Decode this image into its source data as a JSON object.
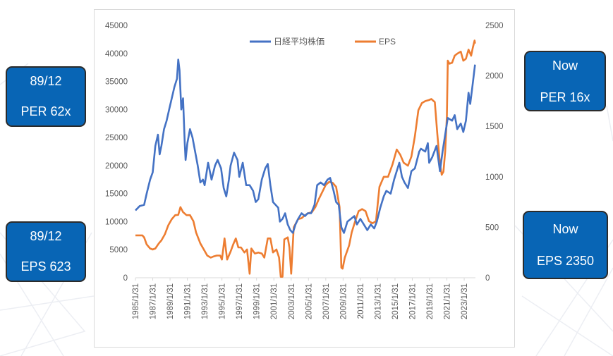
{
  "callouts": {
    "peak_per": {
      "line1": "89/12",
      "line2": "PER 62x"
    },
    "peak_eps": {
      "line1": "89/12",
      "line2": "EPS 623"
    },
    "now_per": {
      "line1": "Now",
      "line2": "PER 16x"
    },
    "now_eps": {
      "line1": "Now",
      "line2": "EPS 2350"
    }
  },
  "colors": {
    "callout_fill": "#0865b5",
    "nikkei": "#4472c4",
    "eps": "#ed7d31"
  },
  "chart_data": {
    "type": "line",
    "title": "",
    "xlabel": "",
    "ylabel": "",
    "grid": false,
    "legend_placement": "top",
    "x_ticks": [
      "1985/1/31",
      "1987/1/31",
      "1989/1/31",
      "1991/1/31",
      "1993/1/31",
      "1995/1/31",
      "1997/1/31",
      "1999/1/31",
      "2001/1/31",
      "2003/1/31",
      "2005/1/31",
      "2007/1/31",
      "2009/1/31",
      "2011/1/31",
      "2013/1/31",
      "2015/1/31",
      "2017/1/31",
      "2019/1/31",
      "2021/1/31",
      "2023/1/31"
    ],
    "x_range": [
      1985.0,
      2024.3
    ],
    "y_left": {
      "min": 0,
      "max": 45000,
      "ticks": [
        "0",
        "5000",
        "10000",
        "15000",
        "20000",
        "25000",
        "30000",
        "35000",
        "40000",
        "45000"
      ]
    },
    "y_right": {
      "min": 0,
      "max": 2500,
      "ticks": [
        "0",
        "500",
        "1000",
        "1500",
        "2000",
        "2500"
      ]
    },
    "series": [
      {
        "name": "日経平均株価",
        "axis": "left",
        "points": [
          [
            1985.0,
            12000
          ],
          [
            1985.5,
            12800
          ],
          [
            1986.0,
            13000
          ],
          [
            1986.3,
            15000
          ],
          [
            1986.7,
            17500
          ],
          [
            1987.0,
            18800
          ],
          [
            1987.3,
            23500
          ],
          [
            1987.6,
            25500
          ],
          [
            1987.8,
            22000
          ],
          [
            1988.0,
            23500
          ],
          [
            1988.3,
            26500
          ],
          [
            1988.6,
            28000
          ],
          [
            1988.9,
            30000
          ],
          [
            1989.2,
            32000
          ],
          [
            1989.5,
            34000
          ],
          [
            1989.8,
            35500
          ],
          [
            1989.95,
            38900
          ],
          [
            1990.1,
            37000
          ],
          [
            1990.3,
            30000
          ],
          [
            1990.5,
            32000
          ],
          [
            1990.7,
            24000
          ],
          [
            1990.8,
            21000
          ],
          [
            1991.0,
            24000
          ],
          [
            1991.3,
            26500
          ],
          [
            1991.6,
            25000
          ],
          [
            1991.9,
            22500
          ],
          [
            1992.2,
            20000
          ],
          [
            1992.5,
            17000
          ],
          [
            1992.8,
            17500
          ],
          [
            1993.0,
            16500
          ],
          [
            1993.4,
            20500
          ],
          [
            1993.8,
            17500
          ],
          [
            1994.2,
            20000
          ],
          [
            1994.5,
            21000
          ],
          [
            1994.9,
            19500
          ],
          [
            1995.2,
            16000
          ],
          [
            1995.5,
            14500
          ],
          [
            1995.8,
            17500
          ],
          [
            1996.0,
            20000
          ],
          [
            1996.4,
            22300
          ],
          [
            1996.8,
            21000
          ],
          [
            1997.0,
            18000
          ],
          [
            1997.4,
            20500
          ],
          [
            1997.8,
            16500
          ],
          [
            1998.2,
            16500
          ],
          [
            1998.6,
            15500
          ],
          [
            1998.9,
            13500
          ],
          [
            1999.2,
            14000
          ],
          [
            1999.6,
            17500
          ],
          [
            2000.0,
            19500
          ],
          [
            2000.3,
            20300
          ],
          [
            2000.6,
            16500
          ],
          [
            2000.9,
            13500
          ],
          [
            2001.2,
            13000
          ],
          [
            2001.5,
            12500
          ],
          [
            2001.7,
            10000
          ],
          [
            2002.0,
            10500
          ],
          [
            2002.3,
            11500
          ],
          [
            2002.6,
            9500
          ],
          [
            2002.9,
            8500
          ],
          [
            2003.2,
            8000
          ],
          [
            2003.5,
            9500
          ],
          [
            2003.8,
            10500
          ],
          [
            2004.2,
            11500
          ],
          [
            2004.6,
            11000
          ],
          [
            2004.9,
            11500
          ],
          [
            2005.3,
            11500
          ],
          [
            2005.7,
            13000
          ],
          [
            2006.0,
            16500
          ],
          [
            2006.4,
            17000
          ],
          [
            2006.8,
            16500
          ],
          [
            2007.2,
            17500
          ],
          [
            2007.5,
            17800
          ],
          [
            2007.9,
            15500
          ],
          [
            2008.2,
            13500
          ],
          [
            2008.5,
            13000
          ],
          [
            2008.8,
            9000
          ],
          [
            2009.1,
            8000
          ],
          [
            2009.5,
            10000
          ],
          [
            2009.9,
            10500
          ],
          [
            2010.3,
            11000
          ],
          [
            2010.6,
            9500
          ],
          [
            2011.0,
            10500
          ],
          [
            2011.4,
            9500
          ],
          [
            2011.8,
            8500
          ],
          [
            2012.2,
            9500
          ],
          [
            2012.6,
            8800
          ],
          [
            2012.9,
            10000
          ],
          [
            2013.3,
            12500
          ],
          [
            2013.7,
            14500
          ],
          [
            2014.0,
            15500
          ],
          [
            2014.5,
            15000
          ],
          [
            2014.9,
            17500
          ],
          [
            2015.3,
            19500
          ],
          [
            2015.5,
            20500
          ],
          [
            2015.8,
            18000
          ],
          [
            2016.1,
            17000
          ],
          [
            2016.5,
            16000
          ],
          [
            2016.9,
            19000
          ],
          [
            2017.3,
            19500
          ],
          [
            2017.8,
            22500
          ],
          [
            2018.0,
            23000
          ],
          [
            2018.5,
            22500
          ],
          [
            2018.8,
            24000
          ],
          [
            2018.95,
            20500
          ],
          [
            2019.3,
            21500
          ],
          [
            2019.8,
            23500
          ],
          [
            2020.2,
            19000
          ],
          [
            2020.5,
            22500
          ],
          [
            2020.9,
            26500
          ],
          [
            2021.1,
            28500
          ],
          [
            2021.6,
            28000
          ],
          [
            2021.9,
            29000
          ],
          [
            2022.2,
            26500
          ],
          [
            2022.6,
            27500
          ],
          [
            2022.9,
            26000
          ],
          [
            2023.2,
            28000
          ],
          [
            2023.5,
            33000
          ],
          [
            2023.7,
            31000
          ],
          [
            2023.9,
            33500
          ],
          [
            2024.1,
            36000
          ],
          [
            2024.25,
            38000
          ]
        ]
      },
      {
        "name": "EPS",
        "axis": "right",
        "points": [
          [
            1985.0,
            420
          ],
          [
            1985.5,
            420
          ],
          [
            1985.8,
            420
          ],
          [
            1986.0,
            400
          ],
          [
            1986.3,
            330
          ],
          [
            1986.7,
            290
          ],
          [
            1987.0,
            280
          ],
          [
            1987.3,
            290
          ],
          [
            1987.7,
            340
          ],
          [
            1988.0,
            370
          ],
          [
            1988.4,
            430
          ],
          [
            1988.8,
            520
          ],
          [
            1989.2,
            580
          ],
          [
            1989.6,
            620
          ],
          [
            1989.95,
            623
          ],
          [
            1990.2,
            700
          ],
          [
            1990.5,
            650
          ],
          [
            1990.9,
            620
          ],
          [
            1991.3,
            620
          ],
          [
            1991.7,
            560
          ],
          [
            1992.0,
            450
          ],
          [
            1992.5,
            340
          ],
          [
            1992.9,
            280
          ],
          [
            1993.3,
            220
          ],
          [
            1993.7,
            200
          ],
          [
            1994.0,
            210
          ],
          [
            1994.4,
            220
          ],
          [
            1994.8,
            220
          ],
          [
            1995.0,
            180
          ],
          [
            1995.3,
            390
          ],
          [
            1995.6,
            180
          ],
          [
            1996.0,
            260
          ],
          [
            1996.3,
            330
          ],
          [
            1996.6,
            390
          ],
          [
            1996.9,
            300
          ],
          [
            1997.2,
            300
          ],
          [
            1997.6,
            250
          ],
          [
            1997.9,
            280
          ],
          [
            1998.2,
            40
          ],
          [
            1998.4,
            290
          ],
          [
            1998.8,
            240
          ],
          [
            1999.2,
            250
          ],
          [
            1999.6,
            240
          ],
          [
            1999.9,
            200
          ],
          [
            2000.3,
            390
          ],
          [
            2000.6,
            390
          ],
          [
            2000.9,
            250
          ],
          [
            2001.3,
            280
          ],
          [
            2001.6,
            200
          ],
          [
            2001.8,
            10
          ],
          [
            2002.0,
            10
          ],
          [
            2002.2,
            380
          ],
          [
            2002.6,
            400
          ],
          [
            2002.8,
            300
          ],
          [
            2003.0,
            40
          ],
          [
            2003.3,
            500
          ],
          [
            2003.8,
            580
          ],
          [
            2004.2,
            590
          ],
          [
            2004.6,
            620
          ],
          [
            2005.0,
            640
          ],
          [
            2005.4,
            650
          ],
          [
            2005.8,
            700
          ],
          [
            2006.2,
            780
          ],
          [
            2006.6,
            850
          ],
          [
            2007.0,
            920
          ],
          [
            2007.4,
            950
          ],
          [
            2007.8,
            940
          ],
          [
            2008.2,
            900
          ],
          [
            2008.6,
            700
          ],
          [
            2008.8,
            100
          ],
          [
            2008.95,
            90
          ],
          [
            2009.2,
            200
          ],
          [
            2009.7,
            320
          ],
          [
            2010.0,
            450
          ],
          [
            2010.4,
            560
          ],
          [
            2010.8,
            660
          ],
          [
            2011.2,
            680
          ],
          [
            2011.6,
            660
          ],
          [
            2012.0,
            560
          ],
          [
            2012.4,
            540
          ],
          [
            2012.8,
            560
          ],
          [
            2013.2,
            900
          ],
          [
            2013.7,
            1000
          ],
          [
            2014.2,
            1000
          ],
          [
            2014.7,
            1120
          ],
          [
            2015.2,
            1270
          ],
          [
            2015.6,
            1220
          ],
          [
            2016.0,
            1140
          ],
          [
            2016.5,
            1110
          ],
          [
            2016.9,
            1200
          ],
          [
            2017.3,
            1400
          ],
          [
            2017.7,
            1660
          ],
          [
            2018.1,
            1730
          ],
          [
            2018.5,
            1750
          ],
          [
            2018.9,
            1760
          ],
          [
            2019.2,
            1770
          ],
          [
            2019.6,
            1740
          ],
          [
            2019.9,
            1420
          ],
          [
            2020.2,
            1130
          ],
          [
            2020.4,
            1020
          ],
          [
            2020.6,
            1050
          ],
          [
            2020.8,
            1250
          ],
          [
            2021.0,
            1600
          ],
          [
            2021.1,
            2150
          ],
          [
            2021.3,
            2120
          ],
          [
            2021.6,
            2130
          ],
          [
            2021.9,
            2200
          ],
          [
            2022.2,
            2220
          ],
          [
            2022.6,
            2240
          ],
          [
            2022.9,
            2150
          ],
          [
            2023.2,
            2170
          ],
          [
            2023.5,
            2260
          ],
          [
            2023.8,
            2200
          ],
          [
            2024.0,
            2280
          ],
          [
            2024.2,
            2350
          ],
          [
            2024.25,
            2320
          ]
        ]
      }
    ]
  }
}
